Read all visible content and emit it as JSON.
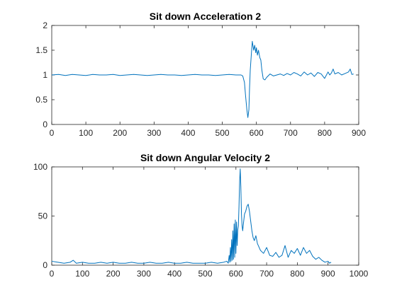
{
  "chart_data": [
    {
      "type": "line",
      "title": "Sit down Acceleration 2",
      "xlabel": "",
      "ylabel": "",
      "xlim": [
        0,
        900
      ],
      "ylim": [
        0,
        2
      ],
      "xticks": [
        0,
        100,
        200,
        300,
        400,
        500,
        600,
        700,
        800,
        900
      ],
      "yticks": [
        0,
        0.5,
        1,
        1.5,
        2
      ],
      "grid": false,
      "legend": "none",
      "color": "#0072bd",
      "series": [
        {
          "x": [
            0,
            20,
            40,
            60,
            80,
            100,
            120,
            140,
            160,
            180,
            200,
            220,
            240,
            260,
            280,
            300,
            320,
            340,
            360,
            380,
            400,
            420,
            440,
            460,
            480,
            500,
            520,
            540,
            555,
            560,
            565,
            568,
            572,
            575,
            578,
            580,
            582,
            585,
            588,
            592,
            595,
            598,
            600,
            603,
            606,
            610,
            613,
            616,
            620,
            625,
            630,
            640,
            650,
            660,
            670,
            680,
            690,
            700,
            710,
            720,
            730,
            740,
            750,
            760,
            770,
            780,
            790,
            800,
            810,
            815,
            820,
            825,
            830,
            840,
            850,
            860,
            870,
            875,
            880,
            885
          ],
          "y": [
            1.0,
            1.01,
            0.99,
            1.01,
            1.0,
            0.99,
            1.01,
            1.0,
            1.0,
            1.01,
            0.99,
            1.0,
            1.01,
            1.0,
            0.99,
            1.0,
            1.01,
            1.0,
            1.0,
            0.99,
            1.0,
            1.01,
            1.0,
            1.0,
            0.99,
            1.0,
            1.01,
            1.0,
            1.0,
            0.98,
            0.85,
            0.6,
            0.3,
            0.14,
            0.3,
            0.75,
            1.1,
            1.4,
            1.68,
            1.5,
            1.6,
            1.45,
            1.55,
            1.4,
            1.5,
            1.35,
            1.3,
            1.1,
            0.92,
            0.9,
            0.95,
            1.02,
            0.98,
            1.0,
            1.02,
            0.99,
            1.03,
            1.0,
            1.05,
            1.02,
            0.98,
            1.06,
            1.0,
            1.04,
            0.97,
            1.05,
            1.02,
            0.93,
            1.06,
            1.0,
            1.04,
            1.12,
            1.02,
            1.05,
            1.0,
            1.03,
            1.06,
            1.12,
            1.01,
            1.02
          ]
        }
      ]
    },
    {
      "type": "line",
      "title": "Sit down Angular Velocity 2",
      "xlabel": "",
      "ylabel": "",
      "xlim": [
        0,
        1000
      ],
      "ylim": [
        0,
        100
      ],
      "xticks": [
        0,
        100,
        200,
        300,
        400,
        500,
        600,
        700,
        800,
        900,
        1000
      ],
      "yticks": [
        0,
        50,
        100
      ],
      "grid": false,
      "legend": "none",
      "color": "#0072bd",
      "series": [
        {
          "x": [
            0,
            20,
            40,
            60,
            70,
            80,
            100,
            120,
            140,
            160,
            180,
            200,
            220,
            240,
            260,
            280,
            300,
            320,
            340,
            360,
            380,
            400,
            420,
            440,
            460,
            480,
            500,
            520,
            540,
            560,
            570,
            575,
            578,
            580,
            582,
            584,
            586,
            588,
            590,
            592,
            594,
            596,
            598,
            600,
            602,
            604,
            606,
            608,
            610,
            612,
            614,
            616,
            618,
            620,
            622,
            625,
            628,
            632,
            636,
            640,
            644,
            648,
            652,
            656,
            660,
            665,
            670,
            680,
            690,
            700,
            710,
            720,
            730,
            740,
            750,
            760,
            770,
            780,
            790,
            800,
            810,
            820,
            830,
            840,
            850,
            860,
            870,
            880,
            890,
            900,
            905,
            910
          ],
          "y": [
            4,
            3,
            2,
            3,
            5,
            2,
            3,
            2,
            2,
            3,
            2,
            3,
            2,
            2,
            3,
            2,
            2,
            3,
            2,
            2,
            3,
            2,
            2,
            3,
            2,
            2,
            2,
            3,
            2,
            3,
            4,
            2,
            10,
            3,
            18,
            4,
            26,
            5,
            35,
            6,
            42,
            8,
            46,
            12,
            44,
            20,
            36,
            40,
            60,
            85,
            98,
            80,
            52,
            40,
            35,
            44,
            52,
            55,
            60,
            62,
            55,
            45,
            35,
            28,
            25,
            30,
            22,
            15,
            12,
            18,
            10,
            9,
            13,
            8,
            10,
            20,
            8,
            15,
            12,
            17,
            10,
            18,
            12,
            15,
            9,
            6,
            8,
            5,
            3,
            4,
            2,
            3
          ]
        }
      ]
    }
  ]
}
